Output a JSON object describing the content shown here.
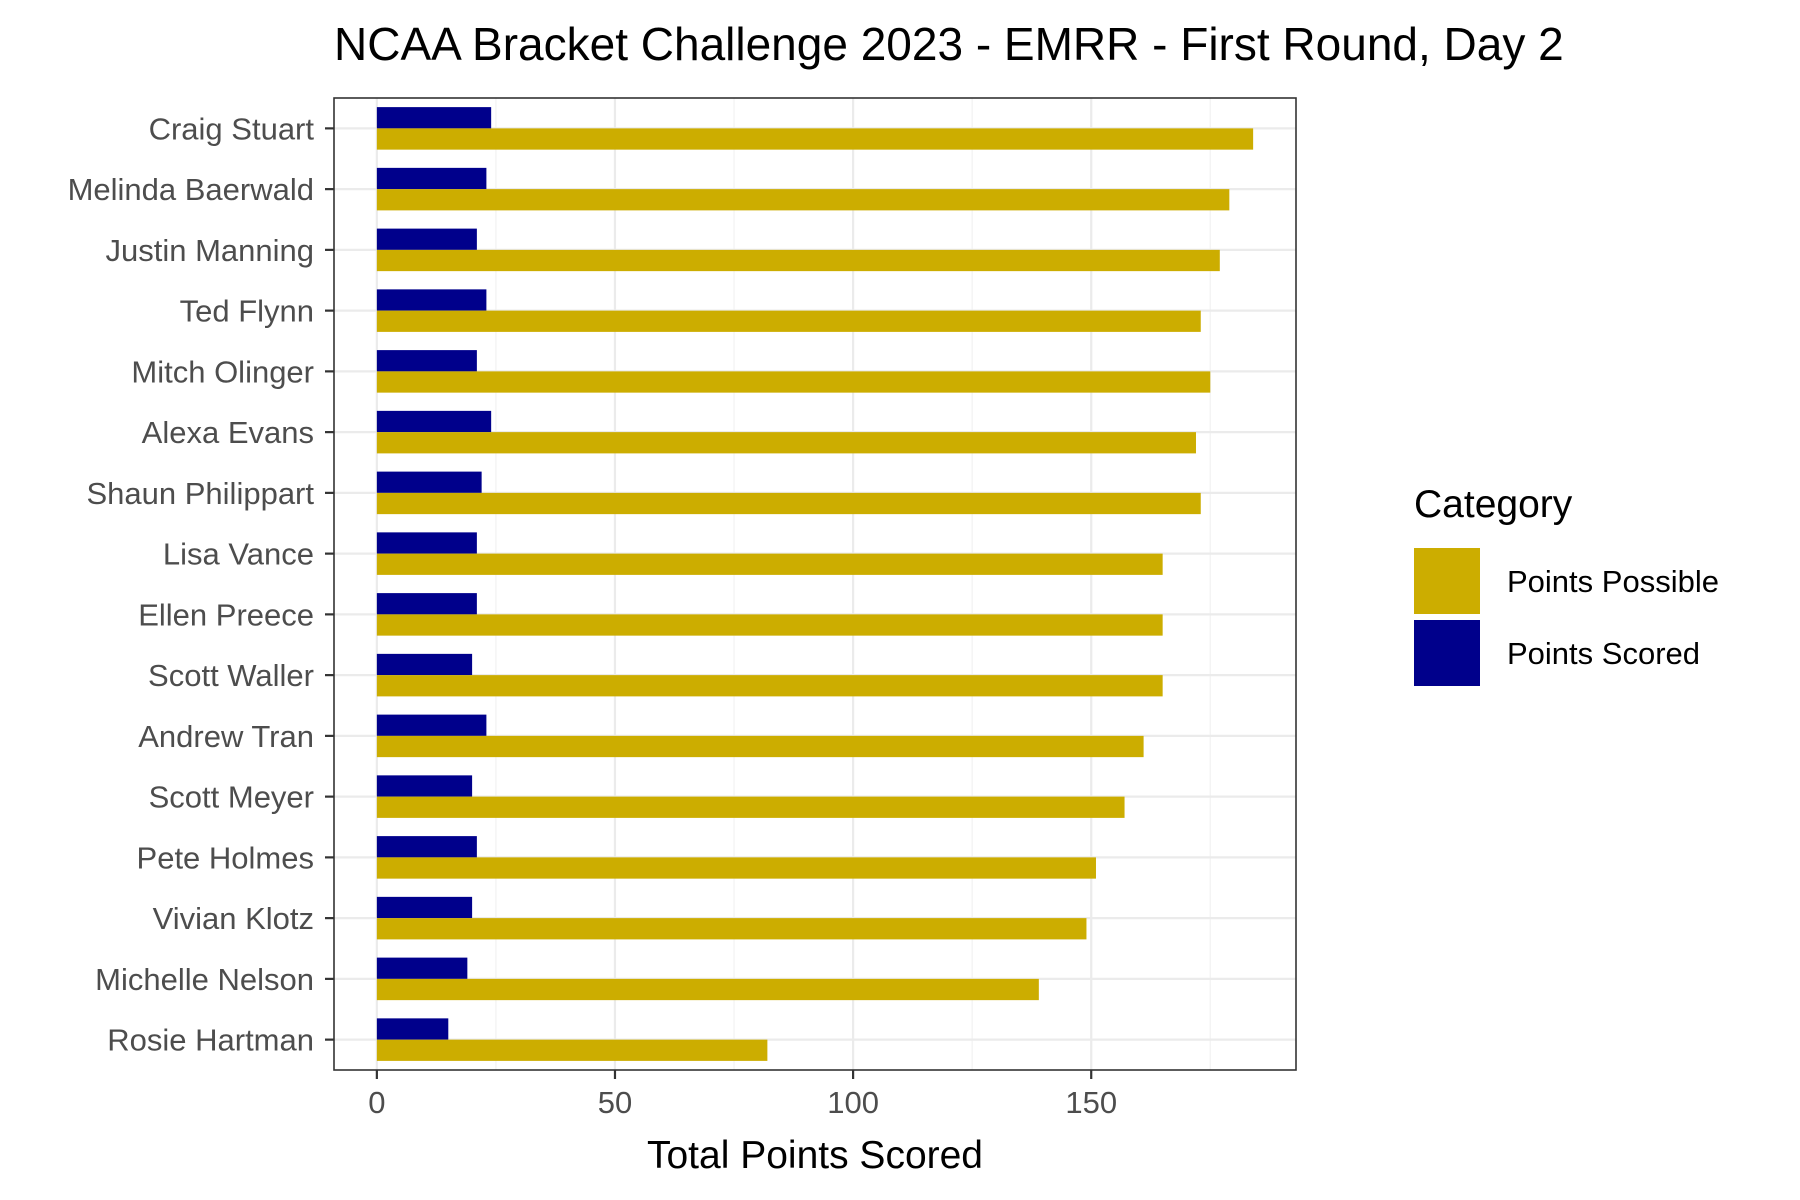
{
  "chart_data": {
    "type": "bar",
    "orientation": "horizontal",
    "title": "NCAA Bracket Challenge 2023 - EMRR - First Round, Day 2",
    "xlabel": "Total Points Scored",
    "ylabel": "",
    "xlim": [
      -9,
      193
    ],
    "x_ticks": [
      0,
      50,
      100,
      150
    ],
    "x_tick_labels": [
      "0",
      "50",
      "100",
      "150"
    ],
    "grid": true,
    "categories": [
      "Craig Stuart",
      "Melinda Baerwald",
      "Justin Manning",
      "Ted Flynn",
      "Mitch Olinger",
      "Alexa Evans",
      "Shaun Philippart",
      "Lisa Vance",
      "Ellen Preece",
      "Scott Waller",
      "Andrew Tran",
      "Scott Meyer",
      "Pete Holmes",
      "Vivian Klotz",
      "Michelle Nelson",
      "Rosie Hartman"
    ],
    "series": [
      {
        "name": "Points Possible",
        "color": "#CCAD00",
        "values": [
          184,
          179,
          177,
          173,
          175,
          172,
          173,
          165,
          165,
          165,
          161,
          157,
          151,
          149,
          139,
          82
        ]
      },
      {
        "name": "Points Scored",
        "color": "#00008B",
        "values": [
          24,
          23,
          21,
          23,
          21,
          24,
          22,
          21,
          21,
          20,
          23,
          20,
          21,
          20,
          19,
          15
        ]
      }
    ],
    "legend": {
      "title": "Category",
      "position": "right"
    }
  }
}
